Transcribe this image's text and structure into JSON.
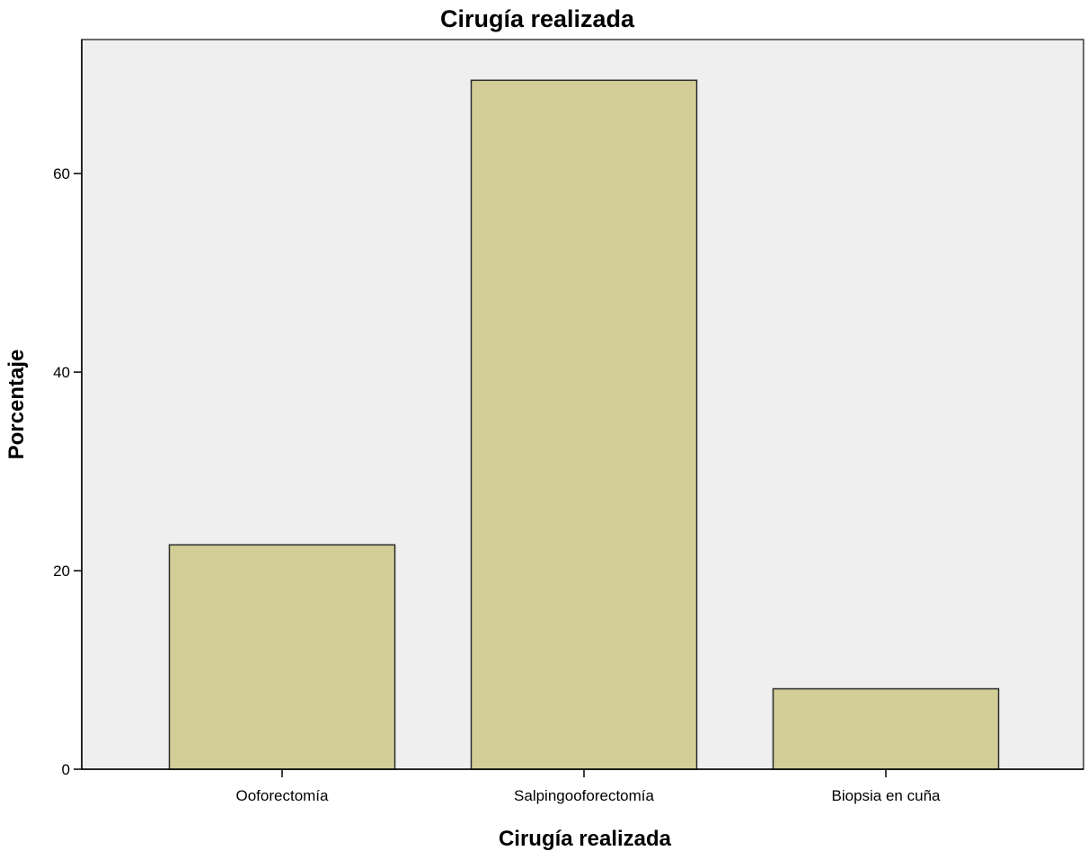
{
  "chart_data": {
    "type": "bar",
    "title": "Cirugía realizada",
    "xlabel": "Cirugía realizada",
    "ylabel": "Porcentaje",
    "categories": [
      "Ooforectomía",
      "Salpingooforectomía",
      "Biopsia en cuña"
    ],
    "values": [
      22.6,
      69.4,
      8.1
    ],
    "ylim": [
      0,
      73.5
    ],
    "yticks": [
      0,
      20,
      40,
      60
    ],
    "grid": false,
    "legend": "none",
    "colors": {
      "bar_fill": "#d3cd98",
      "bar_stroke": "#2b2b2b",
      "plot_background": "#efefef",
      "frame": "#3a3a3a"
    }
  }
}
